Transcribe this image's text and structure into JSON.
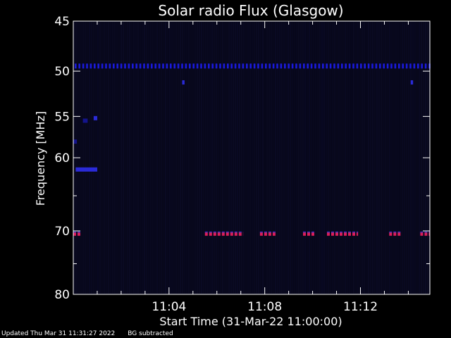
{
  "chart_data": {
    "type": "heatmap",
    "title": "Solar radio Flux (Glasgow)",
    "xlabel": "Start Time (31-Mar-22 11:00:00)",
    "ylabel": "Frequency [MHz]",
    "x_unit": "minutes after 11:00:00",
    "xlim": [
      0,
      14.9
    ],
    "ylim_log": [
      45,
      80
    ],
    "x_ticks": [
      {
        "label": "11:04",
        "value": 4
      },
      {
        "label": "11:08",
        "value": 8
      },
      {
        "label": "11:12",
        "value": 12
      }
    ],
    "y_ticks": [
      {
        "label": "45",
        "value": 45
      },
      {
        "label": "50",
        "value": 50
      },
      {
        "label": "55",
        "value": 55
      },
      {
        "label": "60",
        "value": 60
      },
      {
        "label": "70",
        "value": 70
      },
      {
        "label": "80",
        "value": 80
      }
    ],
    "y_minor_ticks": [
      65,
      75
    ],
    "background_color": "#07071a",
    "axis_color": "#ffffff",
    "emission_bands": [
      {
        "frequency": 49.5,
        "from": 0.0,
        "to": 14.9,
        "color": "#1a1adc",
        "style": "dotted"
      },
      {
        "frequency": 70.5,
        "from": 0.0,
        "to": 0.3,
        "color": "#dc1e5a",
        "style": "dashed"
      },
      {
        "frequency": 70.5,
        "from": 5.5,
        "to": 7.1,
        "color": "#dc1e5a",
        "style": "dashed"
      },
      {
        "frequency": 70.5,
        "from": 7.8,
        "to": 8.5,
        "color": "#dc1e5a",
        "style": "dashed"
      },
      {
        "frequency": 70.5,
        "from": 9.6,
        "to": 10.1,
        "color": "#dc1e5a",
        "style": "dashed"
      },
      {
        "frequency": 70.5,
        "from": 10.6,
        "to": 11.9,
        "color": "#dc1e5a",
        "style": "dashed"
      },
      {
        "frequency": 70.5,
        "from": 13.2,
        "to": 13.7,
        "color": "#dc1e5a",
        "style": "dashed"
      },
      {
        "frequency": 70.5,
        "from": 14.5,
        "to": 14.9,
        "color": "#dc1e5a",
        "style": "dashed"
      }
    ],
    "patches": [
      {
        "frequency": 61.5,
        "from": 0.1,
        "to": 1.0,
        "color": "#2a2ad8"
      },
      {
        "frequency": 55.2,
        "from": 0.85,
        "to": 1.0,
        "color": "#2a2ad8"
      },
      {
        "frequency": 55.5,
        "from": 0.4,
        "to": 0.6,
        "color": "#14148c"
      },
      {
        "frequency": 58.0,
        "from": 0.0,
        "to": 0.15,
        "color": "#14148c"
      },
      {
        "frequency": 51.2,
        "from": 4.55,
        "to": 4.65,
        "color": "#2a2ad8"
      },
      {
        "frequency": 51.2,
        "from": 14.1,
        "to": 14.2,
        "color": "#2a2ad8"
      }
    ]
  },
  "footer": {
    "updated": "Updated Thu Mar 31 11:31:27 2022",
    "note": "BG subtracted"
  }
}
